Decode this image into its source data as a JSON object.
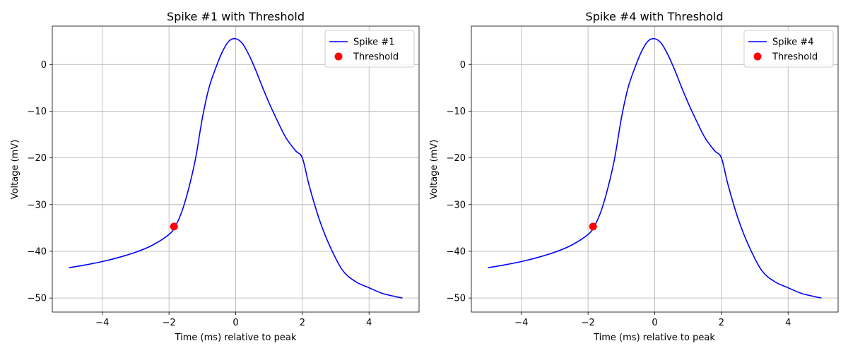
{
  "colors": {
    "series": "#0000ff",
    "threshold": "#ff0000",
    "grid": "#b0b0b0",
    "axis": "#000000"
  },
  "chart_data": [
    {
      "type": "line",
      "title": "Spike #1 with Threshold",
      "xlabel": "Time (ms) relative to peak",
      "ylabel": "Voltage (mV)",
      "xlim": [
        -5.5,
        5.5
      ],
      "ylim": [
        -53,
        8.2
      ],
      "xticks": [
        -4,
        -2,
        0,
        2,
        4
      ],
      "xtick_labels": [
        "−4",
        "−2",
        "0",
        "2",
        "4"
      ],
      "yticks": [
        0,
        -10,
        -20,
        -30,
        -40,
        -50
      ],
      "ytick_labels": [
        "0",
        "−10",
        "−20",
        "−30",
        "−40",
        "−50"
      ],
      "grid": true,
      "legend_position": "upper right",
      "series": [
        {
          "name": "Spike #1",
          "x": [
            -5,
            -4.5,
            -4,
            -3.5,
            -3,
            -2.5,
            -2,
            -1.8,
            -1.6,
            -1.4,
            -1.2,
            -1.0,
            -0.8,
            -0.6,
            -0.4,
            -0.2,
            0,
            0.2,
            0.4,
            0.6,
            0.8,
            1.0,
            1.2,
            1.5,
            1.8,
            2.0,
            2.2,
            2.5,
            2.8,
            3.2,
            3.6,
            4.0,
            4.4,
            4.8,
            5.0
          ],
          "y": [
            -43.5,
            -42.9,
            -42.2,
            -41.3,
            -40.2,
            -38.7,
            -36.4,
            -34.5,
            -31.2,
            -26.3,
            -20.0,
            -11.5,
            -5.0,
            -0.8,
            2.7,
            5.0,
            5.5,
            4.5,
            2.0,
            -1.2,
            -4.8,
            -8.2,
            -11.3,
            -15.6,
            -18.5,
            -20.0,
            -25.8,
            -33.0,
            -38.5,
            -44.0,
            -46.5,
            -47.8,
            -49.0,
            -49.7,
            -50.0
          ]
        },
        {
          "name": "Threshold",
          "marker_only": true,
          "x": [
            -1.85
          ],
          "y": [
            -34.7
          ]
        }
      ]
    },
    {
      "type": "line",
      "title": "Spike #4 with Threshold",
      "xlabel": "Time (ms) relative to peak",
      "ylabel": "Voltage (mV)",
      "xlim": [
        -5.5,
        5.5
      ],
      "ylim": [
        -53,
        8.2
      ],
      "xticks": [
        -4,
        -2,
        0,
        2,
        4
      ],
      "xtick_labels": [
        "−4",
        "−2",
        "0",
        "2",
        "4"
      ],
      "yticks": [
        0,
        -10,
        -20,
        -30,
        -40,
        -50
      ],
      "ytick_labels": [
        "0",
        "−10",
        "−20",
        "−30",
        "−40",
        "−50"
      ],
      "grid": true,
      "legend_position": "upper right",
      "series": [
        {
          "name": "Spike #4",
          "x": [
            -5,
            -4.5,
            -4,
            -3.5,
            -3,
            -2.5,
            -2,
            -1.8,
            -1.6,
            -1.4,
            -1.2,
            -1.0,
            -0.8,
            -0.6,
            -0.4,
            -0.2,
            0,
            0.2,
            0.4,
            0.6,
            0.8,
            1.0,
            1.2,
            1.5,
            1.8,
            2.0,
            2.2,
            2.5,
            2.8,
            3.2,
            3.6,
            4.0,
            4.4,
            4.8,
            5.0
          ],
          "y": [
            -43.5,
            -42.9,
            -42.2,
            -41.3,
            -40.2,
            -38.7,
            -36.4,
            -34.5,
            -31.2,
            -26.3,
            -20.0,
            -11.5,
            -5.0,
            -0.8,
            2.7,
            5.0,
            5.5,
            4.5,
            2.0,
            -1.2,
            -4.8,
            -8.2,
            -11.3,
            -15.6,
            -18.5,
            -20.0,
            -25.8,
            -33.0,
            -38.5,
            -44.0,
            -46.5,
            -47.8,
            -49.0,
            -49.7,
            -50.0
          ]
        },
        {
          "name": "Threshold",
          "marker_only": true,
          "x": [
            -1.85
          ],
          "y": [
            -34.7
          ]
        }
      ]
    }
  ]
}
